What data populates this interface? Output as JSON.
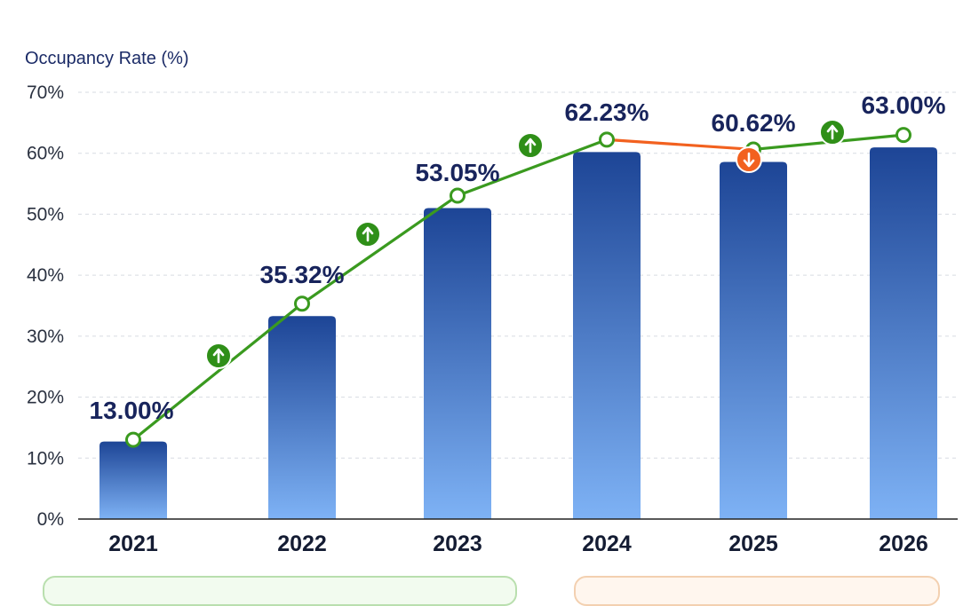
{
  "chart_data": {
    "type": "bar",
    "ylabel": "Occupancy Rate (%)",
    "categories": [
      "2021",
      "2022",
      "2023",
      "2024",
      "2025",
      "2026"
    ],
    "values": [
      13.0,
      35.32,
      53.05,
      62.23,
      60.62,
      63.0
    ],
    "data_labels": [
      "13.00%",
      "35.32%",
      "53.05%",
      "62.23%",
      "60.62%",
      "63.00%"
    ],
    "yticks": [
      "0%",
      "10%",
      "20%",
      "30%",
      "40%",
      "50%",
      "60%",
      "70%"
    ],
    "ylim": [
      0,
      70
    ],
    "trend_line": true,
    "trend_directions": [
      "up",
      "up",
      "up",
      "down",
      "up"
    ],
    "grid": "horizontal-dashed",
    "colors": {
      "bar_top": "#1d4596",
      "bar_bottom": "#7eb2f5",
      "trend_up": "#3a9a1f",
      "trend_down": "#f2611f",
      "badge_up": "#2f8f18",
      "badge_down": "#f2611f"
    }
  }
}
